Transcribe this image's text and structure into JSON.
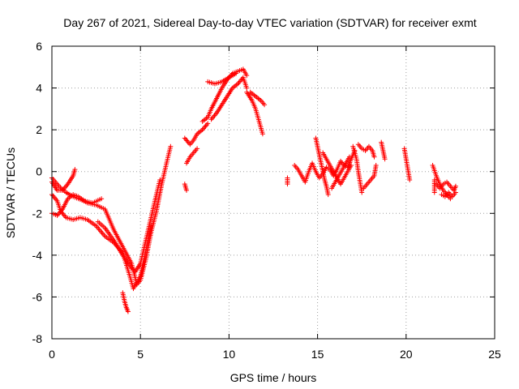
{
  "chart_data": {
    "type": "scatter",
    "title": "Day 267 of 2021, Sidereal Day-to-day VTEC variation (SDTVAR) for receiver exmt",
    "xlabel": "GPS time / hours",
    "ylabel": "SDTVAR / TECUs",
    "xlim": [
      0,
      25
    ],
    "ylim": [
      -8,
      6
    ],
    "xticks": [
      0,
      5,
      10,
      15,
      20,
      25
    ],
    "yticks": [
      -8,
      -6,
      -4,
      -2,
      0,
      2,
      4,
      6
    ],
    "xtick_labels": [
      "0",
      "5",
      "10",
      "15",
      "20",
      "25"
    ],
    "ytick_labels": [
      "-8",
      "-6",
      "-4",
      "-2",
      "0",
      "2",
      "4",
      "6"
    ],
    "grid": true,
    "marker": "+",
    "series": [
      {
        "color": "#ff0000",
        "tracks": [
          [
            [
              0.0,
              -0.5
            ],
            [
              0.3,
              -0.9
            ],
            [
              0.6,
              -0.9
            ],
            [
              0.9,
              -0.6
            ],
            [
              1.2,
              -0.2
            ],
            [
              1.3,
              0.1
            ]
          ],
          [
            [
              0.0,
              -2.0
            ],
            [
              0.3,
              -2.1
            ],
            [
              0.6,
              -1.8
            ],
            [
              0.9,
              -1.3
            ],
            [
              1.2,
              -1.1
            ],
            [
              1.5,
              -1.2
            ],
            [
              2.0,
              -1.5
            ],
            [
              2.5,
              -1.6
            ],
            [
              3.0,
              -1.8
            ],
            [
              3.5,
              -2.8
            ],
            [
              4.0,
              -3.6
            ],
            [
              4.5,
              -4.4
            ],
            [
              4.8,
              -5.4
            ],
            [
              5.0,
              -5.2
            ],
            [
              5.3,
              -4.2
            ],
            [
              5.6,
              -2.9
            ],
            [
              5.9,
              -1.9
            ],
            [
              6.2,
              -0.6
            ],
            [
              6.5,
              0.5
            ],
            [
              6.7,
              1.2
            ]
          ],
          [
            [
              0.0,
              -1.1
            ],
            [
              0.3,
              -1.4
            ],
            [
              0.5,
              -1.9
            ],
            [
              0.8,
              -2.2
            ],
            [
              1.2,
              -2.3
            ],
            [
              1.6,
              -2.2
            ],
            [
              2.0,
              -2.3
            ],
            [
              2.5,
              -2.6
            ],
            [
              3.0,
              -3.1
            ],
            [
              3.5,
              -3.4
            ],
            [
              4.0,
              -3.9
            ],
            [
              4.4,
              -5.0
            ],
            [
              4.6,
              -5.6
            ],
            [
              5.0,
              -5.0
            ],
            [
              5.3,
              -3.8
            ],
            [
              5.6,
              -2.6
            ]
          ],
          [
            [
              0.0,
              -0.3
            ],
            [
              0.4,
              -0.7
            ],
            [
              0.8,
              -1.0
            ],
            [
              1.2,
              -1.2
            ],
            [
              1.8,
              -1.4
            ],
            [
              2.3,
              -1.5
            ],
            [
              2.8,
              -1.3
            ]
          ],
          [
            [
              2.6,
              -2.4
            ],
            [
              3.0,
              -2.7
            ],
            [
              3.5,
              -3.3
            ],
            [
              4.0,
              -4.0
            ],
            [
              4.4,
              -4.5
            ],
            [
              4.7,
              -4.8
            ],
            [
              5.0,
              -4.4
            ],
            [
              5.3,
              -3.3
            ],
            [
              5.6,
              -2.2
            ],
            [
              5.9,
              -1.1
            ],
            [
              6.1,
              -0.4
            ]
          ],
          [
            [
              4.0,
              -5.8
            ],
            [
              4.1,
              -6.2
            ],
            [
              4.2,
              -6.5
            ],
            [
              4.3,
              -6.7
            ]
          ],
          [
            [
              7.5,
              -0.6
            ],
            [
              7.6,
              -0.9
            ]
          ],
          [
            [
              7.5,
              1.6
            ],
            [
              7.8,
              1.3
            ],
            [
              8.0,
              1.5
            ],
            [
              8.2,
              1.8
            ],
            [
              8.5,
              2.0
            ],
            [
              8.8,
              2.3
            ]
          ],
          [
            [
              7.6,
              0.4
            ],
            [
              7.8,
              0.7
            ],
            [
              8.0,
              0.9
            ],
            [
              8.2,
              1.1
            ]
          ],
          [
            [
              8.5,
              2.4
            ],
            [
              8.8,
              2.6
            ],
            [
              9.0,
              3.0
            ],
            [
              9.3,
              3.5
            ],
            [
              9.6,
              4.0
            ],
            [
              9.9,
              4.4
            ],
            [
              10.2,
              4.7
            ],
            [
              10.5,
              4.8
            ],
            [
              10.8,
              4.9
            ],
            [
              11.0,
              4.6
            ]
          ],
          [
            [
              9.0,
              2.5
            ],
            [
              9.3,
              2.8
            ],
            [
              9.6,
              3.2
            ],
            [
              9.9,
              3.6
            ],
            [
              10.2,
              4.0
            ],
            [
              10.5,
              4.2
            ],
            [
              10.8,
              4.5
            ],
            [
              11.0,
              4.0
            ]
          ],
          [
            [
              8.8,
              4.3
            ],
            [
              9.2,
              4.2
            ],
            [
              9.6,
              4.3
            ],
            [
              10.0,
              4.5
            ],
            [
              10.4,
              4.7
            ]
          ],
          [
            [
              11.0,
              3.8
            ],
            [
              11.3,
              3.4
            ],
            [
              11.5,
              3.0
            ],
            [
              11.7,
              2.4
            ],
            [
              11.9,
              1.8
            ]
          ],
          [
            [
              11.2,
              3.8
            ],
            [
              11.5,
              3.6
            ],
            [
              11.8,
              3.4
            ],
            [
              12.0,
              3.2
            ]
          ],
          [
            [
              13.3,
              -0.3
            ],
            [
              13.3,
              -0.6
            ]
          ],
          [
            [
              13.7,
              0.3
            ],
            [
              13.9,
              0.1
            ],
            [
              14.1,
              -0.2
            ],
            [
              14.3,
              -0.5
            ],
            [
              14.5,
              0.0
            ],
            [
              14.7,
              0.4
            ],
            [
              14.9,
              0.0
            ],
            [
              15.1,
              -0.3
            ],
            [
              15.3,
              -0.1
            ],
            [
              15.5,
              0.2
            ],
            [
              15.7,
              0.1
            ],
            [
              15.9,
              -0.2
            ],
            [
              16.1,
              0.1
            ],
            [
              16.3,
              0.5
            ],
            [
              16.5,
              0.3
            ],
            [
              16.7,
              0.2
            ],
            [
              16.9,
              0.6
            ],
            [
              17.1,
              1.0
            ]
          ],
          [
            [
              14.9,
              1.6
            ],
            [
              15.0,
              1.2
            ],
            [
              15.1,
              0.8
            ],
            [
              15.2,
              0.4
            ],
            [
              15.3,
              0.0
            ],
            [
              15.4,
              -0.4
            ],
            [
              15.5,
              -0.7
            ],
            [
              15.6,
              -1.1
            ]
          ],
          [
            [
              15.3,
              0.9
            ],
            [
              15.5,
              0.6
            ],
            [
              15.7,
              0.3
            ],
            [
              15.9,
              0.0
            ],
            [
              16.1,
              -0.3
            ],
            [
              16.3,
              -0.6
            ],
            [
              16.5,
              -0.3
            ],
            [
              16.7,
              0.0
            ],
            [
              16.9,
              0.3
            ]
          ],
          [
            [
              15.8,
              -0.8
            ],
            [
              16.0,
              -0.5
            ],
            [
              16.2,
              -0.2
            ],
            [
              16.4,
              0.1
            ],
            [
              16.6,
              0.4
            ],
            [
              16.8,
              0.7
            ]
          ],
          [
            [
              17.0,
              1.2
            ],
            [
              17.2,
              0.6
            ],
            [
              17.3,
              0.0
            ],
            [
              17.4,
              -0.5
            ],
            [
              17.5,
              -1.0
            ]
          ],
          [
            [
              17.3,
              1.3
            ],
            [
              17.5,
              1.1
            ],
            [
              17.7,
              1.0
            ],
            [
              17.9,
              1.2
            ],
            [
              18.1,
              1.0
            ],
            [
              18.2,
              0.7
            ]
          ],
          [
            [
              17.6,
              -0.8
            ],
            [
              17.8,
              -0.6
            ],
            [
              18.0,
              -0.4
            ],
            [
              18.2,
              -0.2
            ],
            [
              18.3,
              0.3
            ]
          ],
          [
            [
              18.6,
              1.4
            ],
            [
              18.7,
              1.0
            ],
            [
              18.8,
              0.6
            ]
          ],
          [
            [
              19.9,
              1.1
            ],
            [
              20.0,
              0.6
            ],
            [
              20.1,
              0.1
            ],
            [
              20.2,
              -0.4
            ]
          ],
          [
            [
              21.5,
              0.3
            ],
            [
              21.7,
              -0.2
            ],
            [
              21.9,
              -0.6
            ],
            [
              22.1,
              -0.9
            ],
            [
              22.3,
              -1.1
            ],
            [
              22.5,
              -1.3
            ]
          ],
          [
            [
              21.7,
              -0.6
            ],
            [
              21.9,
              -0.8
            ],
            [
              22.1,
              -0.6
            ],
            [
              22.3,
              -0.5
            ],
            [
              22.5,
              -0.7
            ],
            [
              22.7,
              -0.9
            ],
            [
              22.8,
              -0.7
            ]
          ],
          [
            [
              22.0,
              -1.1
            ],
            [
              22.2,
              -1.2
            ],
            [
              22.4,
              -1.0
            ],
            [
              22.6,
              -1.2
            ],
            [
              22.8,
              -1.0
            ]
          ],
          [
            [
              21.6,
              -0.4
            ],
            [
              21.6,
              -1.0
            ]
          ]
        ]
      }
    ]
  }
}
